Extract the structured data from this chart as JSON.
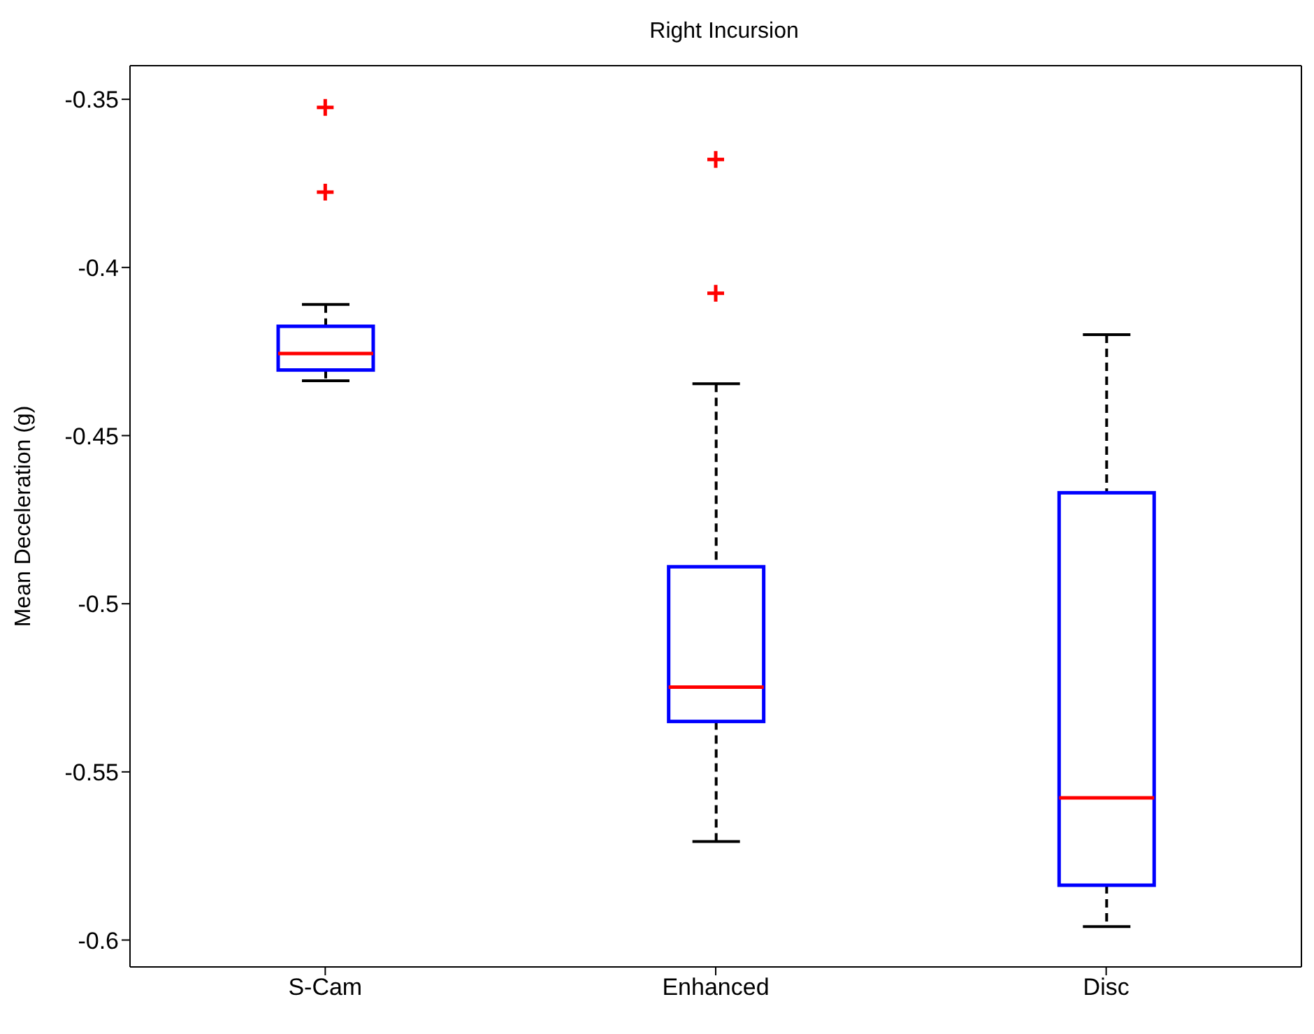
{
  "chart_data": {
    "type": "box",
    "title": "Right Incursion",
    "ylabel": "Mean Deceleration (g)",
    "categories": [
      "S-Cam",
      "Enhanced",
      "Disc"
    ],
    "boxes": [
      {
        "low": -0.4337,
        "q1": -0.4305,
        "median": -0.4256,
        "q3": -0.4175,
        "high": -0.411,
        "outliers": [
          -0.3524,
          -0.3776
        ]
      },
      {
        "low": -0.5707,
        "q1": -0.535,
        "median": -0.5248,
        "q3": -0.489,
        "high": -0.4346,
        "outliers": [
          -0.3679,
          -0.4077
        ]
      },
      {
        "low": -0.596,
        "q1": -0.5837,
        "median": -0.5577,
        "q3": -0.467,
        "high": -0.42
      }
    ],
    "color": "#0000ff",
    "ylim": [
      -0.608,
      -0.34
    ],
    "yticks": [
      {
        "value": -0.35,
        "label": "-0.35"
      },
      {
        "value": -0.4,
        "label": "-0.4"
      },
      {
        "value": -0.45,
        "label": "-0.45"
      },
      {
        "value": -0.5,
        "label": "-0.5"
      },
      {
        "value": -0.55,
        "label": "-0.55"
      },
      {
        "value": -0.6,
        "label": "-0.6"
      }
    ]
  }
}
